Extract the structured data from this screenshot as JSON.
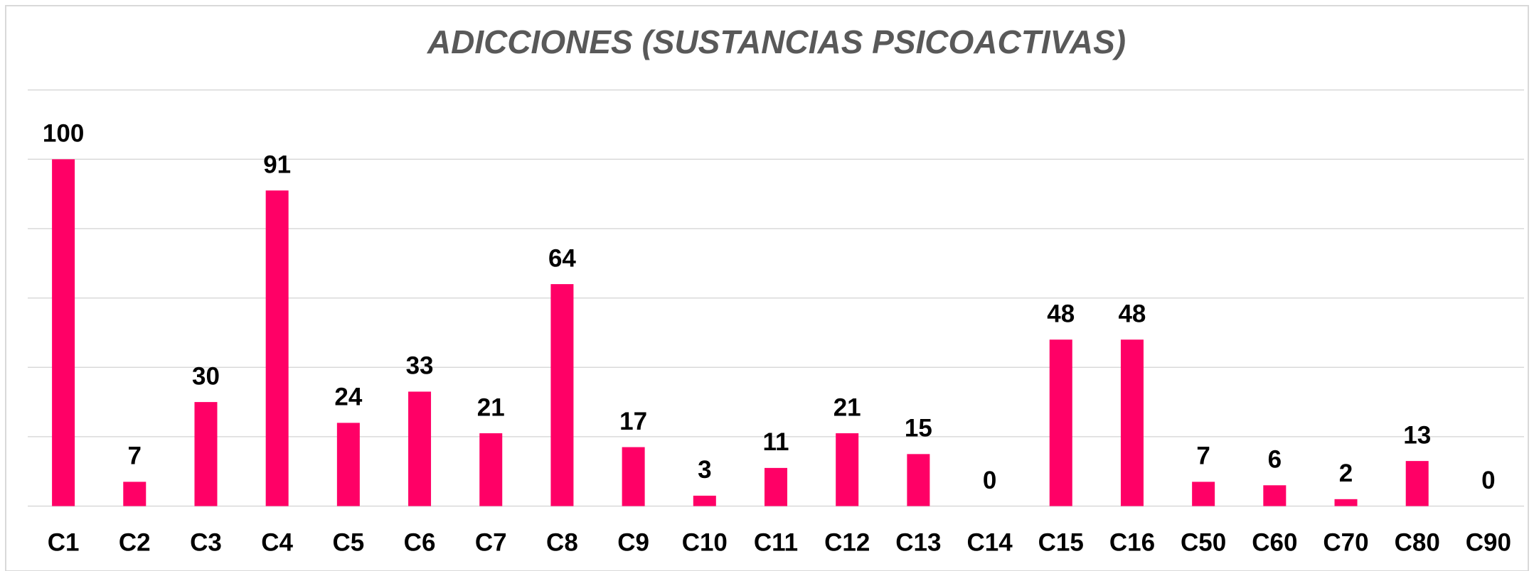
{
  "chart_data": {
    "type": "bar",
    "title": "ADICCIONES  (SUSTANCIAS PSICOACTIVAS)",
    "categories": [
      "C1",
      "C2",
      "C3",
      "C4",
      "C5",
      "C6",
      "C7",
      "C8",
      "C9",
      "C10",
      "C11",
      "C12",
      "C13",
      "C14",
      "C15",
      "C16",
      "C50",
      "C60",
      "C70",
      "C80",
      "C90"
    ],
    "values": [
      100,
      7,
      30,
      91,
      24,
      33,
      21,
      64,
      17,
      3,
      11,
      21,
      15,
      0,
      48,
      48,
      7,
      6,
      2,
      13,
      0
    ],
    "color": "#ff0066",
    "ylim": [
      0,
      120
    ],
    "yticks": [
      0,
      20,
      40,
      60,
      80,
      100,
      120
    ],
    "grid": true
  }
}
